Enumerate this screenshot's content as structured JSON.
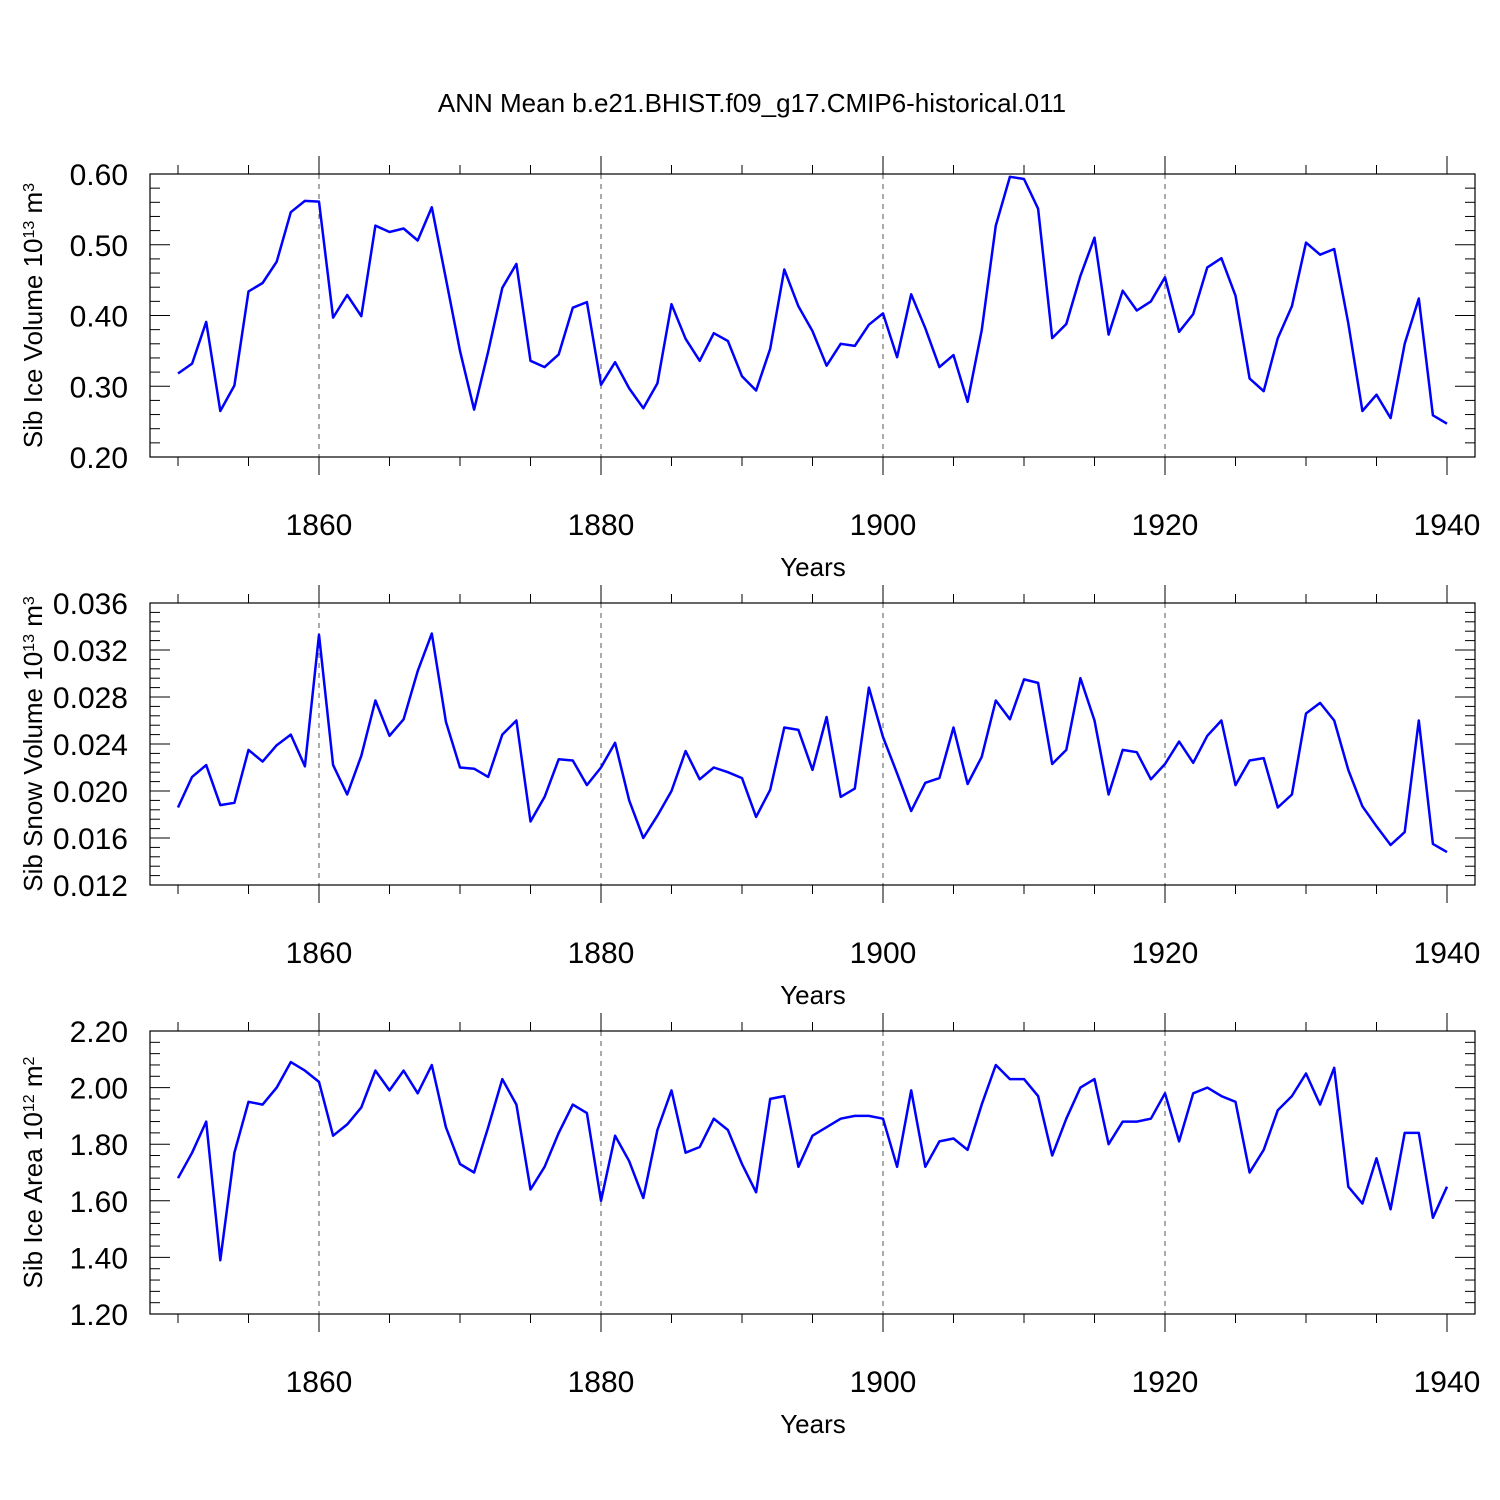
{
  "title": "ANN Mean b.e21.BHIST.f09_g17.CMIP6-historical.011",
  "series_color": "#0000ff",
  "chart_data": [
    {
      "type": "line",
      "xlabel": "Years",
      "ylabel": {
        "base": "Sib Ice Volume 10",
        "exp1": "13",
        "mid": " m",
        "exp2": "3"
      },
      "xlim": [
        1850,
        1940
      ],
      "ylim": [
        0.2,
        0.6
      ],
      "x_ticks": [
        "1860",
        "1880",
        "1900",
        "1920",
        "1940"
      ],
      "y_ticks": [
        "0.20",
        "0.30",
        "0.40",
        "0.50",
        "0.60"
      ],
      "grid": "vertical dashed at major x ticks",
      "x": [
        1850,
        1851,
        1852,
        1853,
        1854,
        1855,
        1856,
        1857,
        1858,
        1859,
        1860,
        1861,
        1862,
        1863,
        1864,
        1865,
        1866,
        1867,
        1868,
        1869,
        1870,
        1871,
        1872,
        1873,
        1874,
        1875,
        1876,
        1877,
        1878,
        1879,
        1880,
        1881,
        1882,
        1883,
        1884,
        1885,
        1886,
        1887,
        1888,
        1889,
        1890,
        1891,
        1892,
        1893,
        1894,
        1895,
        1896,
        1897,
        1898,
        1899,
        1900,
        1901,
        1902,
        1903,
        1904,
        1905,
        1906,
        1907,
        1908,
        1909,
        1910,
        1911,
        1912,
        1913,
        1914,
        1915,
        1916,
        1917,
        1918,
        1919,
        1920,
        1921,
        1922,
        1923,
        1924,
        1925,
        1926,
        1927,
        1928,
        1929,
        1930,
        1931,
        1932,
        1933,
        1934,
        1935,
        1936,
        1937,
        1938,
        1939,
        1940
      ],
      "values": [
        0.318,
        0.332,
        0.391,
        0.265,
        0.301,
        0.434,
        0.446,
        0.476,
        0.546,
        0.562,
        0.561,
        0.397,
        0.429,
        0.399,
        0.527,
        0.518,
        0.523,
        0.506,
        0.553,
        0.452,
        0.35,
        0.267,
        0.349,
        0.439,
        0.473,
        0.336,
        0.327,
        0.345,
        0.411,
        0.419,
        0.302,
        0.334,
        0.297,
        0.269,
        0.304,
        0.416,
        0.367,
        0.336,
        0.375,
        0.364,
        0.314,
        0.294,
        0.353,
        0.465,
        0.413,
        0.378,
        0.329,
        0.36,
        0.357,
        0.387,
        0.403,
        0.341,
        0.43,
        0.382,
        0.327,
        0.344,
        0.278,
        0.379,
        0.527,
        0.596,
        0.593,
        0.551,
        0.368,
        0.388,
        0.456,
        0.51,
        0.373,
        0.435,
        0.407,
        0.42,
        0.454,
        0.377,
        0.402,
        0.468,
        0.481,
        0.428,
        0.311,
        0.293,
        0.368,
        0.413,
        0.503,
        0.486,
        0.494,
        0.389,
        0.265,
        0.288,
        0.255,
        0.36,
        0.424,
        0.259,
        0.247
      ]
    },
    {
      "type": "line",
      "xlabel": "Years",
      "ylabel": {
        "base": "Sib Snow Volume 10",
        "exp1": "13",
        "mid": " m",
        "exp2": "3"
      },
      "xlim": [
        1850,
        1940
      ],
      "ylim": [
        0.012,
        0.036
      ],
      "x_ticks": [
        "1860",
        "1880",
        "1900",
        "1920",
        "1940"
      ],
      "y_ticks": [
        "0.012",
        "0.016",
        "0.020",
        "0.024",
        "0.028",
        "0.032",
        "0.036"
      ],
      "grid": "vertical dashed at major x ticks",
      "x": [
        1850,
        1851,
        1852,
        1853,
        1854,
        1855,
        1856,
        1857,
        1858,
        1859,
        1860,
        1861,
        1862,
        1863,
        1864,
        1865,
        1866,
        1867,
        1868,
        1869,
        1870,
        1871,
        1872,
        1873,
        1874,
        1875,
        1876,
        1877,
        1878,
        1879,
        1880,
        1881,
        1882,
        1883,
        1884,
        1885,
        1886,
        1887,
        1888,
        1889,
        1890,
        1891,
        1892,
        1893,
        1894,
        1895,
        1896,
        1897,
        1898,
        1899,
        1900,
        1901,
        1902,
        1903,
        1904,
        1905,
        1906,
        1907,
        1908,
        1909,
        1910,
        1911,
        1912,
        1913,
        1914,
        1915,
        1916,
        1917,
        1918,
        1919,
        1920,
        1921,
        1922,
        1923,
        1924,
        1925,
        1926,
        1927,
        1928,
        1929,
        1930,
        1931,
        1932,
        1933,
        1934,
        1935,
        1936,
        1937,
        1938,
        1939,
        1940
      ],
      "values": [
        0.0186,
        0.0212,
        0.0222,
        0.0188,
        0.019,
        0.0235,
        0.0225,
        0.0239,
        0.0248,
        0.0221,
        0.0333,
        0.0222,
        0.0197,
        0.023,
        0.0277,
        0.0247,
        0.0261,
        0.0302,
        0.0334,
        0.0259,
        0.022,
        0.0219,
        0.0212,
        0.0248,
        0.026,
        0.0174,
        0.0195,
        0.0227,
        0.0226,
        0.0205,
        0.022,
        0.0241,
        0.0192,
        0.016,
        0.0179,
        0.02,
        0.0234,
        0.021,
        0.022,
        0.0216,
        0.0211,
        0.0178,
        0.0201,
        0.0254,
        0.0252,
        0.0218,
        0.0263,
        0.0195,
        0.0202,
        0.0288,
        0.0246,
        0.0215,
        0.0183,
        0.0207,
        0.0211,
        0.0254,
        0.0206,
        0.0229,
        0.0277,
        0.0261,
        0.0295,
        0.0292,
        0.0223,
        0.0235,
        0.0296,
        0.026,
        0.0197,
        0.0235,
        0.0233,
        0.021,
        0.0223,
        0.0242,
        0.0224,
        0.0247,
        0.026,
        0.0205,
        0.0226,
        0.0228,
        0.0186,
        0.0197,
        0.0266,
        0.0275,
        0.026,
        0.0218,
        0.0187,
        0.017,
        0.0154,
        0.0165,
        0.026,
        0.0155,
        0.0148
      ]
    },
    {
      "type": "line",
      "xlabel": "Years",
      "ylabel": {
        "base": "Sib Ice Area 10",
        "exp1": "12",
        "mid": " m",
        "exp2": "2"
      },
      "xlim": [
        1850,
        1940
      ],
      "ylim": [
        1.2,
        2.2
      ],
      "x_ticks": [
        "1860",
        "1880",
        "1900",
        "1920",
        "1940"
      ],
      "y_ticks": [
        "1.20",
        "1.40",
        "1.60",
        "1.80",
        "2.00",
        "2.20"
      ],
      "grid": "vertical dashed at major x ticks",
      "x": [
        1850,
        1851,
        1852,
        1853,
        1854,
        1855,
        1856,
        1857,
        1858,
        1859,
        1860,
        1861,
        1862,
        1863,
        1864,
        1865,
        1866,
        1867,
        1868,
        1869,
        1870,
        1871,
        1872,
        1873,
        1874,
        1875,
        1876,
        1877,
        1878,
        1879,
        1880,
        1881,
        1882,
        1883,
        1884,
        1885,
        1886,
        1887,
        1888,
        1889,
        1890,
        1891,
        1892,
        1893,
        1894,
        1895,
        1896,
        1897,
        1898,
        1899,
        1900,
        1901,
        1902,
        1903,
        1904,
        1905,
        1906,
        1907,
        1908,
        1909,
        1910,
        1911,
        1912,
        1913,
        1914,
        1915,
        1916,
        1917,
        1918,
        1919,
        1920,
        1921,
        1922,
        1923,
        1924,
        1925,
        1926,
        1927,
        1928,
        1929,
        1930,
        1931,
        1932,
        1933,
        1934,
        1935,
        1936,
        1937,
        1938,
        1939,
        1940
      ],
      "values": [
        1.68,
        1.77,
        1.88,
        1.39,
        1.77,
        1.95,
        1.94,
        2.0,
        2.09,
        2.06,
        2.02,
        1.83,
        1.87,
        1.93,
        2.06,
        1.99,
        2.06,
        1.98,
        2.08,
        1.86,
        1.73,
        1.7,
        1.86,
        2.03,
        1.94,
        1.64,
        1.72,
        1.84,
        1.94,
        1.91,
        1.6,
        1.83,
        1.74,
        1.61,
        1.85,
        1.99,
        1.77,
        1.79,
        1.89,
        1.85,
        1.73,
        1.63,
        1.96,
        1.97,
        1.72,
        1.83,
        1.86,
        1.89,
        1.9,
        1.9,
        1.89,
        1.72,
        1.99,
        1.72,
        1.81,
        1.82,
        1.78,
        1.94,
        2.08,
        2.03,
        2.03,
        1.97,
        1.76,
        1.89,
        2.0,
        2.03,
        1.8,
        1.88,
        1.88,
        1.89,
        1.98,
        1.81,
        1.98,
        2.0,
        1.97,
        1.95,
        1.7,
        1.78,
        1.92,
        1.97,
        2.05,
        1.94,
        2.07,
        1.65,
        1.59,
        1.75,
        1.57,
        1.84,
        1.84,
        1.54,
        1.65
      ]
    }
  ]
}
